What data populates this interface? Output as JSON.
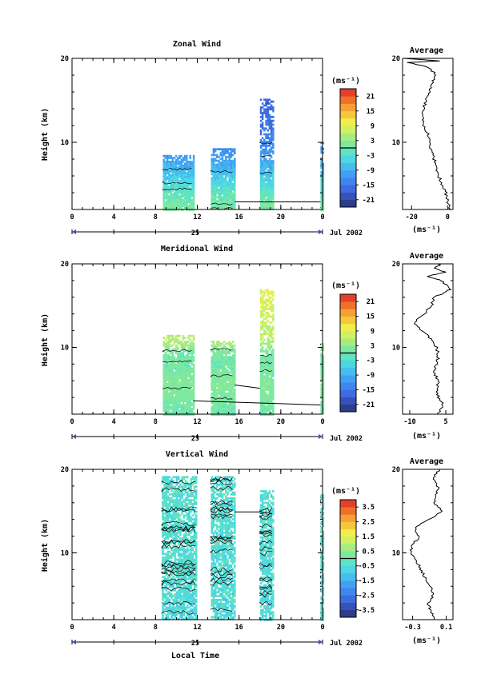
{
  "figure": {
    "xlabel": "Local Time",
    "date_label": "Jul 2002",
    "day_label": "25"
  },
  "colors": {
    "scale": [
      "#2c3d8c",
      "#3552b8",
      "#3d6be0",
      "#3f86ef",
      "#42a0f2",
      "#45bdee",
      "#4dd6e4",
      "#5fe3c2",
      "#7ee8a0",
      "#a8ec80",
      "#d1f062",
      "#f1ee4c",
      "#f8c63c",
      "#f7a034",
      "#f0702a",
      "#e3402a"
    ]
  },
  "chart_data": [
    {
      "type": "heatmap",
      "title": "Zonal Wind",
      "ylabel": "Height (km)",
      "units": "(ms⁻¹)",
      "xlim": [
        0,
        24
      ],
      "ylim": [
        2,
        20
      ],
      "xticks": [
        "0",
        "4",
        "8",
        "12",
        "16",
        "20",
        "0"
      ],
      "yticks": [
        "20",
        "10"
      ],
      "colorbar": {
        "range": [
          -24,
          24
        ],
        "ticks": [
          "21",
          "15",
          "9",
          "3",
          "-3",
          "-9",
          "-15",
          "-21"
        ],
        "contour_at": 0
      },
      "data_blocks": [
        {
          "x": [
            8.7,
            11.6
          ],
          "y": [
            2,
            8.5
          ]
        },
        {
          "x": [
            13.3,
            15.6
          ],
          "y": [
            2,
            9.3
          ]
        },
        {
          "x": [
            18.0,
            19.3
          ],
          "y": [
            2,
            15.2
          ]
        },
        {
          "x": [
            23.8,
            24
          ],
          "y": [
            2,
            10.5
          ]
        }
      ],
      "value_profile": [
        {
          "h": 2.0,
          "v": 1.5
        },
        {
          "h": 4.0,
          "v": -1
        },
        {
          "h": 5.0,
          "v": -3.5
        },
        {
          "h": 6.5,
          "v": -7
        },
        {
          "h": 8.0,
          "v": -10
        },
        {
          "h": 9.5,
          "v": -13
        },
        {
          "h": 12.0,
          "v": -15
        },
        {
          "h": 15.0,
          "v": -17
        }
      ],
      "average": {
        "title": "Average",
        "xticks": [
          "-20",
          "0"
        ],
        "xlim": [
          -25,
          3
        ],
        "xlabel": "(ms⁻¹)",
        "profile": [
          [
            2,
            1.5
          ],
          [
            3,
            0
          ],
          [
            4,
            -1
          ],
          [
            5,
            -3
          ],
          [
            6,
            -5
          ],
          [
            7,
            -6
          ],
          [
            8,
            -7.5
          ],
          [
            9,
            -9
          ],
          [
            10,
            -10
          ],
          [
            11,
            -11
          ],
          [
            12,
            -13
          ],
          [
            13,
            -14
          ],
          [
            14,
            -13.5
          ],
          [
            15,
            -12
          ],
          [
            16,
            -10
          ],
          [
            17,
            -9
          ],
          [
            18,
            -6
          ],
          [
            19,
            -11
          ],
          [
            19.5,
            -22
          ],
          [
            19.7,
            -4
          ],
          [
            20,
            -24
          ]
        ]
      }
    },
    {
      "type": "heatmap",
      "title": "Meridional Wind",
      "ylabel": "Height (km)",
      "units": "(ms⁻¹)",
      "xlim": [
        0,
        24
      ],
      "ylim": [
        2,
        20
      ],
      "xticks": [
        "0",
        "4",
        "8",
        "12",
        "16",
        "20",
        "0"
      ],
      "yticks": [
        "20",
        "10"
      ],
      "colorbar": {
        "range": [
          -24,
          24
        ],
        "ticks": [
          "21",
          "15",
          "9",
          "3",
          "-3",
          "-9",
          "-15",
          "-21"
        ],
        "contour_at": 0
      },
      "data_blocks": [
        {
          "x": [
            8.7,
            11.6
          ],
          "y": [
            2,
            11.5
          ]
        },
        {
          "x": [
            13.3,
            15.6
          ],
          "y": [
            2,
            10.8
          ]
        },
        {
          "x": [
            18.0,
            19.3
          ],
          "y": [
            2,
            17
          ]
        },
        {
          "x": [
            23.8,
            24
          ],
          "y": [
            2,
            10.5
          ]
        }
      ],
      "value_profile": [
        {
          "h": 2.0,
          "v": 0
        },
        {
          "h": 4.0,
          "v": 1.5
        },
        {
          "h": 6.0,
          "v": 2
        },
        {
          "h": 8.0,
          "v": 0.5
        },
        {
          "h": 9.5,
          "v": 1
        },
        {
          "h": 11.0,
          "v": 6
        },
        {
          "h": 14.0,
          "v": 7
        },
        {
          "h": 16.0,
          "v": 9
        }
      ],
      "average": {
        "title": "Average",
        "xticks": [
          "-10",
          "5"
        ],
        "xlim": [
          -13,
          8
        ],
        "xlabel": "(ms⁻¹)",
        "profile": [
          [
            2,
            2
          ],
          [
            3,
            4
          ],
          [
            4,
            2
          ],
          [
            5,
            1
          ],
          [
            6,
            2
          ],
          [
            7,
            0
          ],
          [
            8,
            1
          ],
          [
            9,
            2
          ],
          [
            10,
            1
          ],
          [
            11,
            -1
          ],
          [
            12,
            -5
          ],
          [
            13,
            -8
          ],
          [
            14,
            -4
          ],
          [
            15,
            -1
          ],
          [
            16,
            0
          ],
          [
            16.5,
            4
          ],
          [
            17,
            7
          ],
          [
            18,
            3
          ],
          [
            18.5,
            -3
          ],
          [
            19,
            5
          ],
          [
            19.5,
            0
          ],
          [
            20,
            3
          ]
        ]
      }
    },
    {
      "type": "heatmap",
      "title": "Vertical Wind",
      "ylabel": "Height (km)",
      "units": "(ms⁻¹)",
      "xlim": [
        0,
        24
      ],
      "ylim": [
        2,
        20
      ],
      "xticks": [
        "0",
        "4",
        "8",
        "12",
        "16",
        "20",
        "0"
      ],
      "yticks": [
        "20",
        "10"
      ],
      "colorbar": {
        "range": [
          -4,
          4
        ],
        "ticks": [
          "3.5",
          "2.5",
          "1.5",
          "0.5",
          "-0.5",
          "-1.5",
          "-2.5",
          "-3.5"
        ],
        "contour_at": 0
      },
      "data_blocks": [
        {
          "x": [
            8.6,
            11.9
          ],
          "y": [
            2,
            19.2
          ]
        },
        {
          "x": [
            13.3,
            15.6
          ],
          "y": [
            2,
            19.2
          ]
        },
        {
          "x": [
            18.0,
            19.3
          ],
          "y": [
            2,
            17.5
          ]
        },
        {
          "x": [
            23.8,
            24
          ],
          "y": [
            2,
            17
          ]
        }
      ],
      "value_profile": [
        {
          "h": 2.0,
          "v": -0.6
        },
        {
          "h": 20.0,
          "v": -0.4
        }
      ],
      "average": {
        "title": "Average",
        "xticks": [
          "-0.3",
          "0.1"
        ],
        "xlim": [
          -0.42,
          0.18
        ],
        "xlabel": "(ms⁻¹)",
        "profile": [
          [
            2,
            -0.05
          ],
          [
            3,
            -0.08
          ],
          [
            4,
            -0.12
          ],
          [
            5,
            -0.05
          ],
          [
            6,
            -0.1
          ],
          [
            7,
            -0.15
          ],
          [
            8,
            -0.2
          ],
          [
            9,
            -0.25
          ],
          [
            10,
            -0.33
          ],
          [
            11,
            -0.3
          ],
          [
            12,
            -0.22
          ],
          [
            13,
            -0.28
          ],
          [
            14,
            -0.1
          ],
          [
            15,
            0.05
          ],
          [
            16,
            -0.05
          ],
          [
            17,
            -0.02
          ],
          [
            18,
            0.0
          ],
          [
            19,
            -0.05
          ],
          [
            20,
            0.02
          ]
        ]
      }
    }
  ]
}
